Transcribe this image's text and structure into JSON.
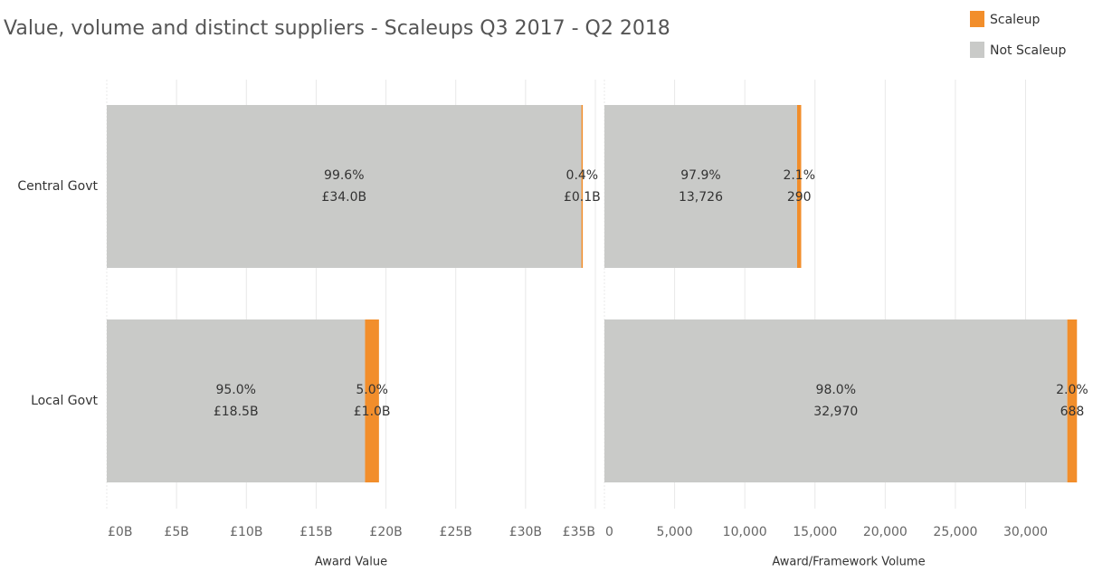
{
  "title": "Value, volume and distinct suppliers - Scaleups Q3 2017 - Q2 2018",
  "chart_data": [
    {
      "type": "bar",
      "orientation": "horizontal",
      "stacked": true,
      "categories": [
        "Central Govt",
        "Local Govt"
      ],
      "series": [
        {
          "name": "Not Scaleup",
          "color": "#c9cac8",
          "values": [
            34.0,
            18.5
          ],
          "value_labels": [
            "£34.0B",
            "£18.5B"
          ],
          "shares": [
            99.6,
            95.0
          ],
          "share_labels": [
            "99.6%",
            "95.0%"
          ]
        },
        {
          "name": "Scaleup",
          "color": "#f28e2b",
          "values": [
            0.1,
            1.0
          ],
          "value_labels": [
            "£0.1B",
            "£1.0B"
          ],
          "shares": [
            0.4,
            5.0
          ],
          "share_labels": [
            "0.4%",
            "5.0%"
          ]
        }
      ],
      "xlim": [
        0,
        35
      ],
      "xticks": [
        {
          "value": 0,
          "label": "£0B"
        },
        {
          "value": 5,
          "label": "£5B"
        },
        {
          "value": 10,
          "label": "£10B"
        },
        {
          "value": 15,
          "label": "£15B"
        },
        {
          "value": 20,
          "label": "£20B"
        },
        {
          "value": 25,
          "label": "£25B"
        },
        {
          "value": 30,
          "label": "£30B"
        },
        {
          "value": 35,
          "label": "£35B"
        }
      ],
      "xlabel": "Award Value",
      "grid": true
    },
    {
      "type": "bar",
      "orientation": "horizontal",
      "stacked": true,
      "series": [
        {
          "name": "Not Scaleup",
          "color": "#c9cac8",
          "values": [
            13726,
            32970
          ],
          "value_labels": [
            "13,726",
            "32,970"
          ],
          "shares": [
            97.9,
            98.0
          ],
          "share_labels": [
            "97.9%",
            "98.0%"
          ]
        },
        {
          "name": "Scaleup",
          "color": "#f28e2b",
          "values": [
            290,
            688
          ],
          "value_labels": [
            "290",
            "688"
          ],
          "shares": [
            2.1,
            2.0
          ],
          "share_labels": [
            "2.1%",
            "2.0%"
          ]
        }
      ],
      "xlim": [
        0,
        34800
      ],
      "xticks": [
        0,
        {
          "value": 5000,
          "label": "5,000"
        },
        {
          "value": 10000,
          "label": "10,000"
        },
        {
          "value": 15000,
          "label": "15,000"
        },
        {
          "value": 20000,
          "label": "20,000"
        },
        {
          "value": 25000,
          "label": "25,000"
        },
        {
          "value": 30000,
          "label": "30,000"
        }
      ],
      "xlabel": "Award/Framework Volume",
      "grid": true
    }
  ]
}
